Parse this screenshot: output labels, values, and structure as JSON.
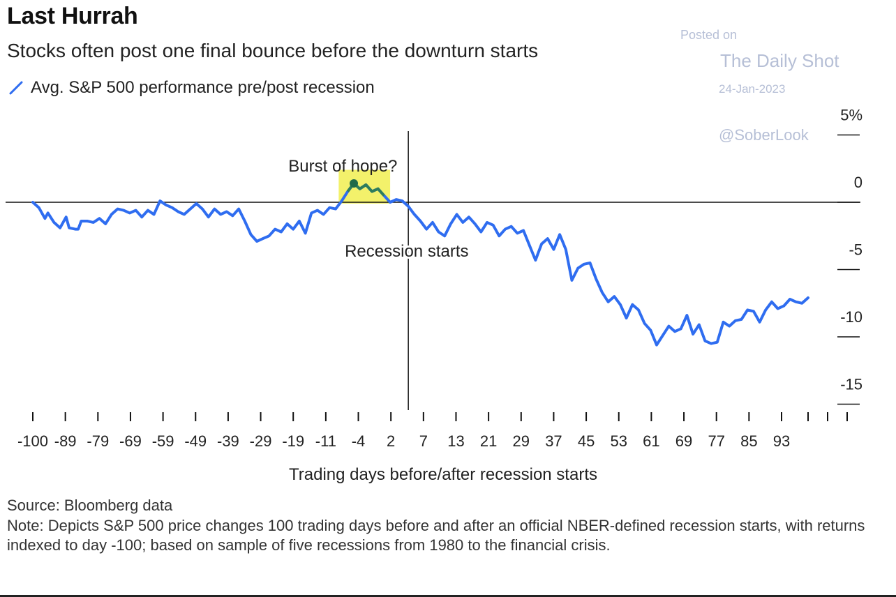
{
  "chart_data": {
    "type": "line",
    "title": "Last Hurrah",
    "subtitle": "Stocks often post one final bounce before the downturn starts",
    "legend": [
      {
        "name": "Avg. S&P 500 performance pre/post recession",
        "color": "#2f6df0"
      }
    ],
    "xlabel": "Trading days before/after recession starts",
    "x_ticks": [
      "-100",
      "-89",
      "-79",
      "-69",
      "-59",
      "-49",
      "-39",
      "-29",
      "-19",
      "-11",
      "-4",
      "2",
      "7",
      "13",
      "21",
      "29",
      "37",
      "45",
      "53",
      "61",
      "69",
      "77",
      "85",
      "93"
    ],
    "y_ticks": [
      "5%",
      "0",
      "-5",
      "-10",
      "-15"
    ],
    "y_tick_values": [
      5,
      0,
      -5,
      -10,
      -15
    ],
    "ylim": [
      -15,
      5
    ],
    "series": [
      {
        "name": "Avg. S&P 500 performance pre/post recession",
        "color": "#2f6df0",
        "points": [
          {
            "x": 0,
            "y": 0.0
          },
          {
            "x": 2,
            "y": -0.4
          },
          {
            "x": 4,
            "y": -1.2
          },
          {
            "x": 5,
            "y": -0.8
          },
          {
            "x": 7,
            "y": -1.5
          },
          {
            "x": 9,
            "y": -1.9
          },
          {
            "x": 11,
            "y": -1.1
          },
          {
            "x": 12,
            "y": -1.9
          },
          {
            "x": 14,
            "y": -2.0
          },
          {
            "x": 15,
            "y": -2.0
          },
          {
            "x": 16,
            "y": -1.4
          },
          {
            "x": 18,
            "y": -1.4
          },
          {
            "x": 20,
            "y": -1.5
          },
          {
            "x": 22,
            "y": -1.2
          },
          {
            "x": 24,
            "y": -1.6
          },
          {
            "x": 26,
            "y": -0.9
          },
          {
            "x": 28,
            "y": -0.5
          },
          {
            "x": 30,
            "y": -0.6
          },
          {
            "x": 32,
            "y": -0.8
          },
          {
            "x": 34,
            "y": -0.6
          },
          {
            "x": 36,
            "y": -1.1
          },
          {
            "x": 38,
            "y": -0.6
          },
          {
            "x": 40,
            "y": -0.9
          },
          {
            "x": 42,
            "y": 0.1
          },
          {
            "x": 44,
            "y": -0.2
          },
          {
            "x": 46,
            "y": -0.4
          },
          {
            "x": 48,
            "y": -0.7
          },
          {
            "x": 50,
            "y": -0.9
          },
          {
            "x": 52,
            "y": -0.5
          },
          {
            "x": 54,
            "y": -0.1
          },
          {
            "x": 56,
            "y": -0.5
          },
          {
            "x": 58,
            "y": -1.1
          },
          {
            "x": 60,
            "y": -0.5
          },
          {
            "x": 62,
            "y": -0.9
          },
          {
            "x": 64,
            "y": -0.7
          },
          {
            "x": 66,
            "y": -1.0
          },
          {
            "x": 68,
            "y": -0.5
          },
          {
            "x": 70,
            "y": -1.4
          },
          {
            "x": 72,
            "y": -2.4
          },
          {
            "x": 74,
            "y": -2.9
          },
          {
            "x": 76,
            "y": -2.7
          },
          {
            "x": 78,
            "y": -2.5
          },
          {
            "x": 80,
            "y": -2.0
          },
          {
            "x": 82,
            "y": -2.2
          },
          {
            "x": 84,
            "y": -1.6
          },
          {
            "x": 86,
            "y": -2.0
          },
          {
            "x": 88,
            "y": -1.4
          },
          {
            "x": 90,
            "y": -2.3
          },
          {
            "x": 92,
            "y": -0.8
          },
          {
            "x": 94,
            "y": -0.6
          },
          {
            "x": 96,
            "y": -0.9
          },
          {
            "x": 98,
            "y": -0.4
          },
          {
            "x": 100,
            "y": -0.5
          },
          {
            "x": 102,
            "y": 0.1
          },
          {
            "x": 104,
            "y": 0.8
          },
          {
            "x": 106,
            "y": 1.4
          },
          {
            "x": 108,
            "y": 1.0
          },
          {
            "x": 110,
            "y": 1.3
          },
          {
            "x": 112,
            "y": 0.8
          },
          {
            "x": 114,
            "y": 1.0
          },
          {
            "x": 116,
            "y": 0.5
          },
          {
            "x": 118,
            "y": 0.0
          },
          {
            "x": 120,
            "y": 0.2
          },
          {
            "x": 122,
            "y": 0.1
          },
          {
            "x": 124,
            "y": -0.3
          },
          {
            "x": 126,
            "y": -0.9
          },
          {
            "x": 128,
            "y": -1.4
          },
          {
            "x": 130,
            "y": -2.0
          },
          {
            "x": 132,
            "y": -1.5
          },
          {
            "x": 134,
            "y": -2.2
          },
          {
            "x": 136,
            "y": -2.5
          },
          {
            "x": 138,
            "y": -1.6
          },
          {
            "x": 140,
            "y": -0.9
          },
          {
            "x": 142,
            "y": -1.5
          },
          {
            "x": 144,
            "y": -1.1
          },
          {
            "x": 146,
            "y": -1.6
          },
          {
            "x": 148,
            "y": -2.2
          },
          {
            "x": 150,
            "y": -1.5
          },
          {
            "x": 152,
            "y": -1.7
          },
          {
            "x": 154,
            "y": -2.5
          },
          {
            "x": 156,
            "y": -2.0
          },
          {
            "x": 158,
            "y": -1.8
          },
          {
            "x": 160,
            "y": -2.3
          },
          {
            "x": 162,
            "y": -2.1
          },
          {
            "x": 164,
            "y": -3.2
          },
          {
            "x": 166,
            "y": -4.3
          },
          {
            "x": 168,
            "y": -3.1
          },
          {
            "x": 170,
            "y": -2.7
          },
          {
            "x": 172,
            "y": -3.5
          },
          {
            "x": 174,
            "y": -2.4
          },
          {
            "x": 176,
            "y": -3.5
          },
          {
            "x": 178,
            "y": -5.8
          },
          {
            "x": 180,
            "y": -4.9
          },
          {
            "x": 182,
            "y": -4.6
          },
          {
            "x": 184,
            "y": -4.5
          },
          {
            "x": 186,
            "y": -5.7
          },
          {
            "x": 188,
            "y": -6.7
          },
          {
            "x": 190,
            "y": -7.4
          },
          {
            "x": 192,
            "y": -7.0
          },
          {
            "x": 194,
            "y": -7.6
          },
          {
            "x": 196,
            "y": -8.6
          },
          {
            "x": 198,
            "y": -7.6
          },
          {
            "x": 200,
            "y": -8.0
          },
          {
            "x": 202,
            "y": -9.0
          },
          {
            "x": 204,
            "y": -9.5
          },
          {
            "x": 206,
            "y": -10.6
          },
          {
            "x": 208,
            "y": -9.9
          },
          {
            "x": 210,
            "y": -9.2
          },
          {
            "x": 212,
            "y": -9.6
          },
          {
            "x": 214,
            "y": -9.4
          },
          {
            "x": 216,
            "y": -8.4
          },
          {
            "x": 218,
            "y": -9.8
          },
          {
            "x": 220,
            "y": -9.1
          },
          {
            "x": 222,
            "y": -10.3
          },
          {
            "x": 224,
            "y": -10.5
          },
          {
            "x": 226,
            "y": -10.4
          },
          {
            "x": 228,
            "y": -8.9
          },
          {
            "x": 230,
            "y": -9.2
          },
          {
            "x": 232,
            "y": -8.8
          },
          {
            "x": 234,
            "y": -8.7
          },
          {
            "x": 236,
            "y": -8.0
          },
          {
            "x": 238,
            "y": -8.1
          },
          {
            "x": 240,
            "y": -8.9
          },
          {
            "x": 242,
            "y": -8.0
          },
          {
            "x": 244,
            "y": -7.4
          },
          {
            "x": 246,
            "y": -7.9
          },
          {
            "x": 248,
            "y": -7.7
          },
          {
            "x": 250,
            "y": -7.2
          },
          {
            "x": 252,
            "y": -7.4
          },
          {
            "x": 254,
            "y": -7.5
          },
          {
            "x": 256,
            "y": -7.1
          }
        ]
      }
    ],
    "annotations": [
      {
        "text": "Burst of hope?",
        "x": 107,
        "y": 2.4,
        "highlight_x": [
          101,
          118
        ],
        "highlight_y": [
          -0.1,
          2.1
        ],
        "highlight_color": "#f3f16b"
      },
      {
        "text": "Recession starts",
        "x": 123,
        "y": -3.4
      }
    ],
    "recession_start_x": 124,
    "x_range": [
      -2,
      258
    ]
  },
  "watermark": {
    "line1": "Posted on",
    "line2": "The Daily Shot",
    "line3": "24-Jan-2023",
    "line4": "@SoberLook"
  },
  "footer": {
    "source": "Source: Bloomberg data",
    "note": "Note: Depicts S&P 500 price changes 100 trading days before and after an official NBER-defined recession starts, with returns indexed to day -100; based on sample of five recessions from 1980 to the financial crisis."
  }
}
